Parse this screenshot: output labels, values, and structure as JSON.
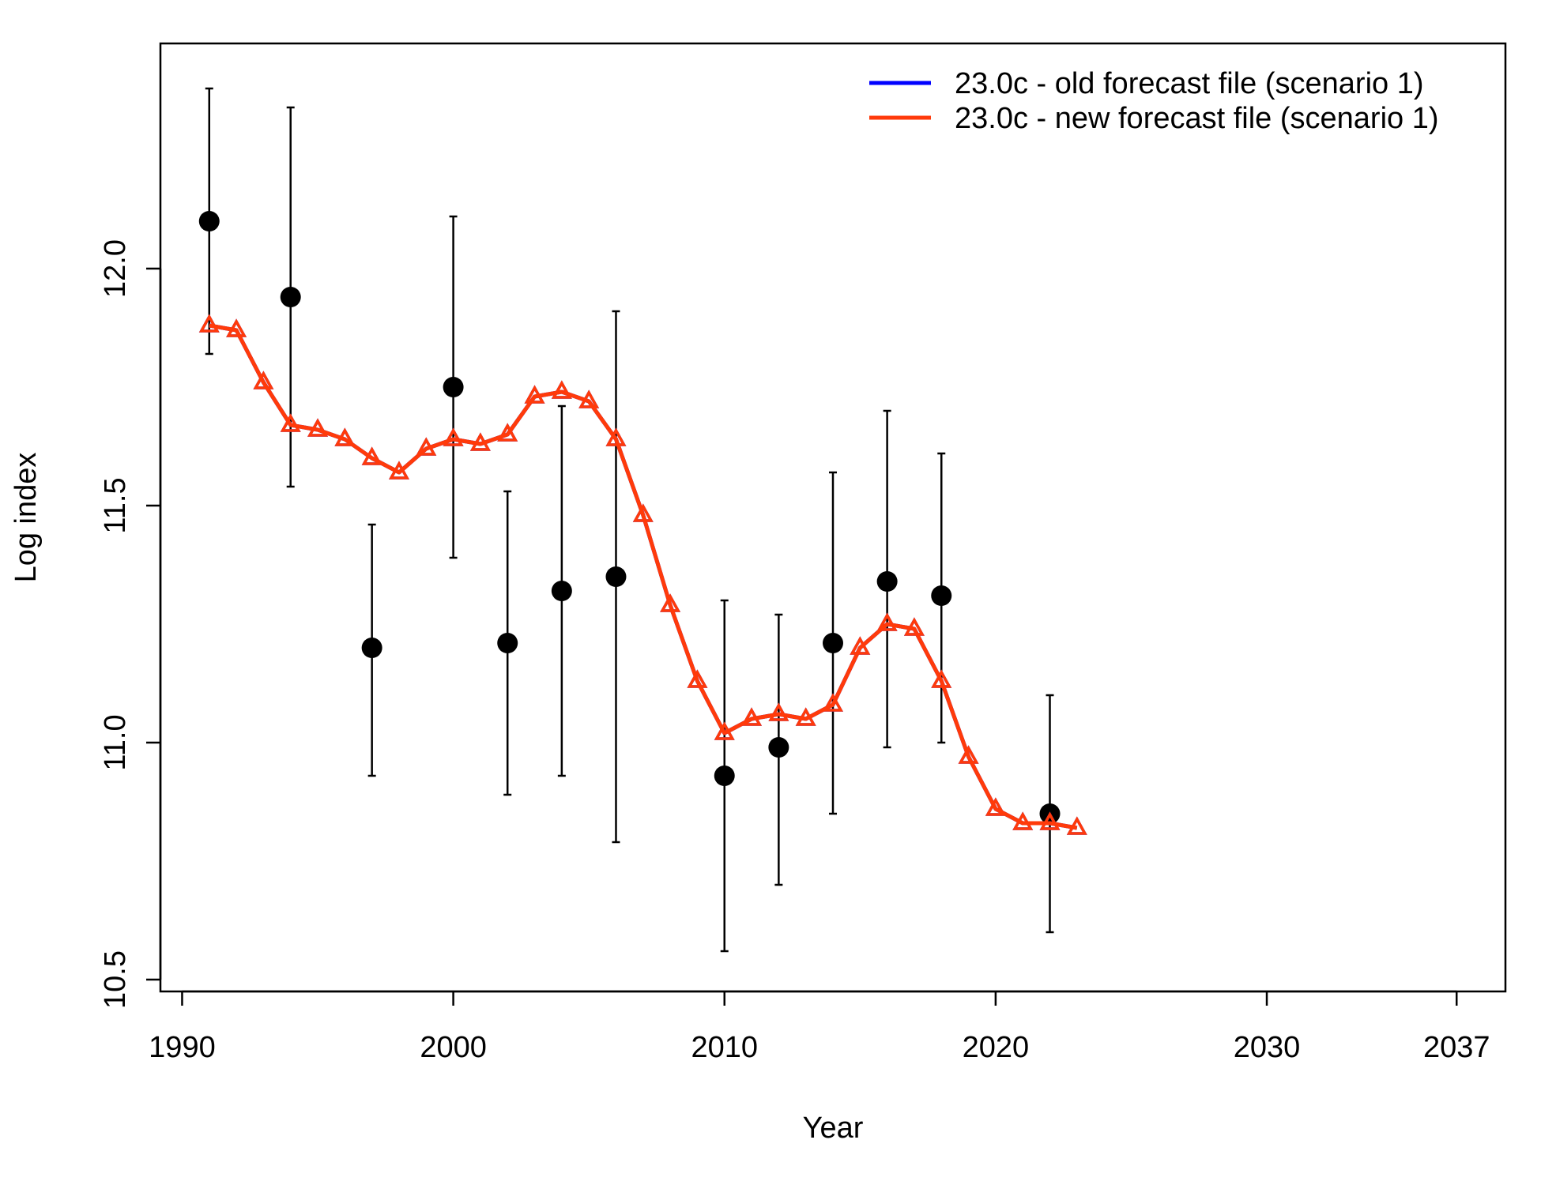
{
  "chart_data": {
    "type": "line",
    "xlabel": "Year",
    "ylabel": "Log index",
    "xlim": [
      1989.2,
      2038.8
    ],
    "ylim": [
      10.475,
      12.475
    ],
    "x_ticks": [
      1990,
      2000,
      2010,
      2020,
      2030,
      2037
    ],
    "y_ticks": [
      10.5,
      11.0,
      11.5,
      12.0
    ],
    "y_tick_labels": [
      "10.5",
      "11.0",
      "11.5",
      "12.0"
    ],
    "legend_position": "top-right",
    "legend": [
      {
        "label": "23.0c - old forecast file (scenario 1)",
        "color": "#0000ff"
      },
      {
        "label": "23.0c - new forecast file (scenario 1)",
        "color": "#ff3a0a"
      }
    ],
    "observed": {
      "color": "#000000",
      "points": [
        {
          "x": 1991,
          "y": 12.1,
          "lo": 11.82,
          "hi": 12.38
        },
        {
          "x": 1994,
          "y": 11.94,
          "lo": 11.54,
          "hi": 12.34
        },
        {
          "x": 1997,
          "y": 11.2,
          "lo": 10.93,
          "hi": 11.46
        },
        {
          "x": 2000,
          "y": 11.75,
          "lo": 11.39,
          "hi": 12.11
        },
        {
          "x": 2002,
          "y": 11.21,
          "lo": 10.89,
          "hi": 11.53
        },
        {
          "x": 2004,
          "y": 11.32,
          "lo": 10.93,
          "hi": 11.71
        },
        {
          "x": 2006,
          "y": 11.35,
          "lo": 10.79,
          "hi": 11.91
        },
        {
          "x": 2010,
          "y": 10.93,
          "lo": 10.56,
          "hi": 11.3
        },
        {
          "x": 2012,
          "y": 10.99,
          "lo": 10.7,
          "hi": 11.27
        },
        {
          "x": 2014,
          "y": 11.21,
          "lo": 10.85,
          "hi": 11.57
        },
        {
          "x": 2016,
          "y": 11.34,
          "lo": 10.99,
          "hi": 11.7
        },
        {
          "x": 2018,
          "y": 11.31,
          "lo": 11.0,
          "hi": 11.61
        },
        {
          "x": 2022,
          "y": 10.85,
          "lo": 10.6,
          "hi": 11.1
        }
      ]
    },
    "x": [
      1991,
      1992,
      1993,
      1994,
      1995,
      1996,
      1997,
      1998,
      1999,
      2000,
      2001,
      2002,
      2003,
      2004,
      2005,
      2006,
      2007,
      2008,
      2009,
      2010,
      2011,
      2012,
      2013,
      2014,
      2015,
      2016,
      2017,
      2018,
      2019,
      2020,
      2021,
      2022,
      2023
    ],
    "series": [
      {
        "name": "23.0c - old forecast file (scenario 1)",
        "color": "#0000ff",
        "values": [
          11.88,
          11.87,
          11.76,
          11.67,
          11.66,
          11.64,
          11.6,
          11.57,
          11.62,
          11.64,
          11.63,
          11.65,
          11.73,
          11.74,
          11.72,
          11.64,
          11.48,
          11.29,
          11.13,
          11.02,
          11.05,
          11.06,
          11.05,
          11.08,
          11.2,
          11.25,
          11.24,
          11.13,
          10.97,
          10.86,
          10.83,
          10.83,
          10.82
        ]
      },
      {
        "name": "23.0c - new forecast file (scenario 1)",
        "color": "#ff3a0a",
        "values": [
          11.88,
          11.87,
          11.76,
          11.67,
          11.66,
          11.64,
          11.6,
          11.57,
          11.62,
          11.64,
          11.63,
          11.65,
          11.73,
          11.74,
          11.72,
          11.64,
          11.48,
          11.29,
          11.13,
          11.02,
          11.05,
          11.06,
          11.05,
          11.08,
          11.2,
          11.25,
          11.24,
          11.13,
          10.97,
          10.86,
          10.83,
          10.83,
          10.82
        ]
      }
    ]
  }
}
